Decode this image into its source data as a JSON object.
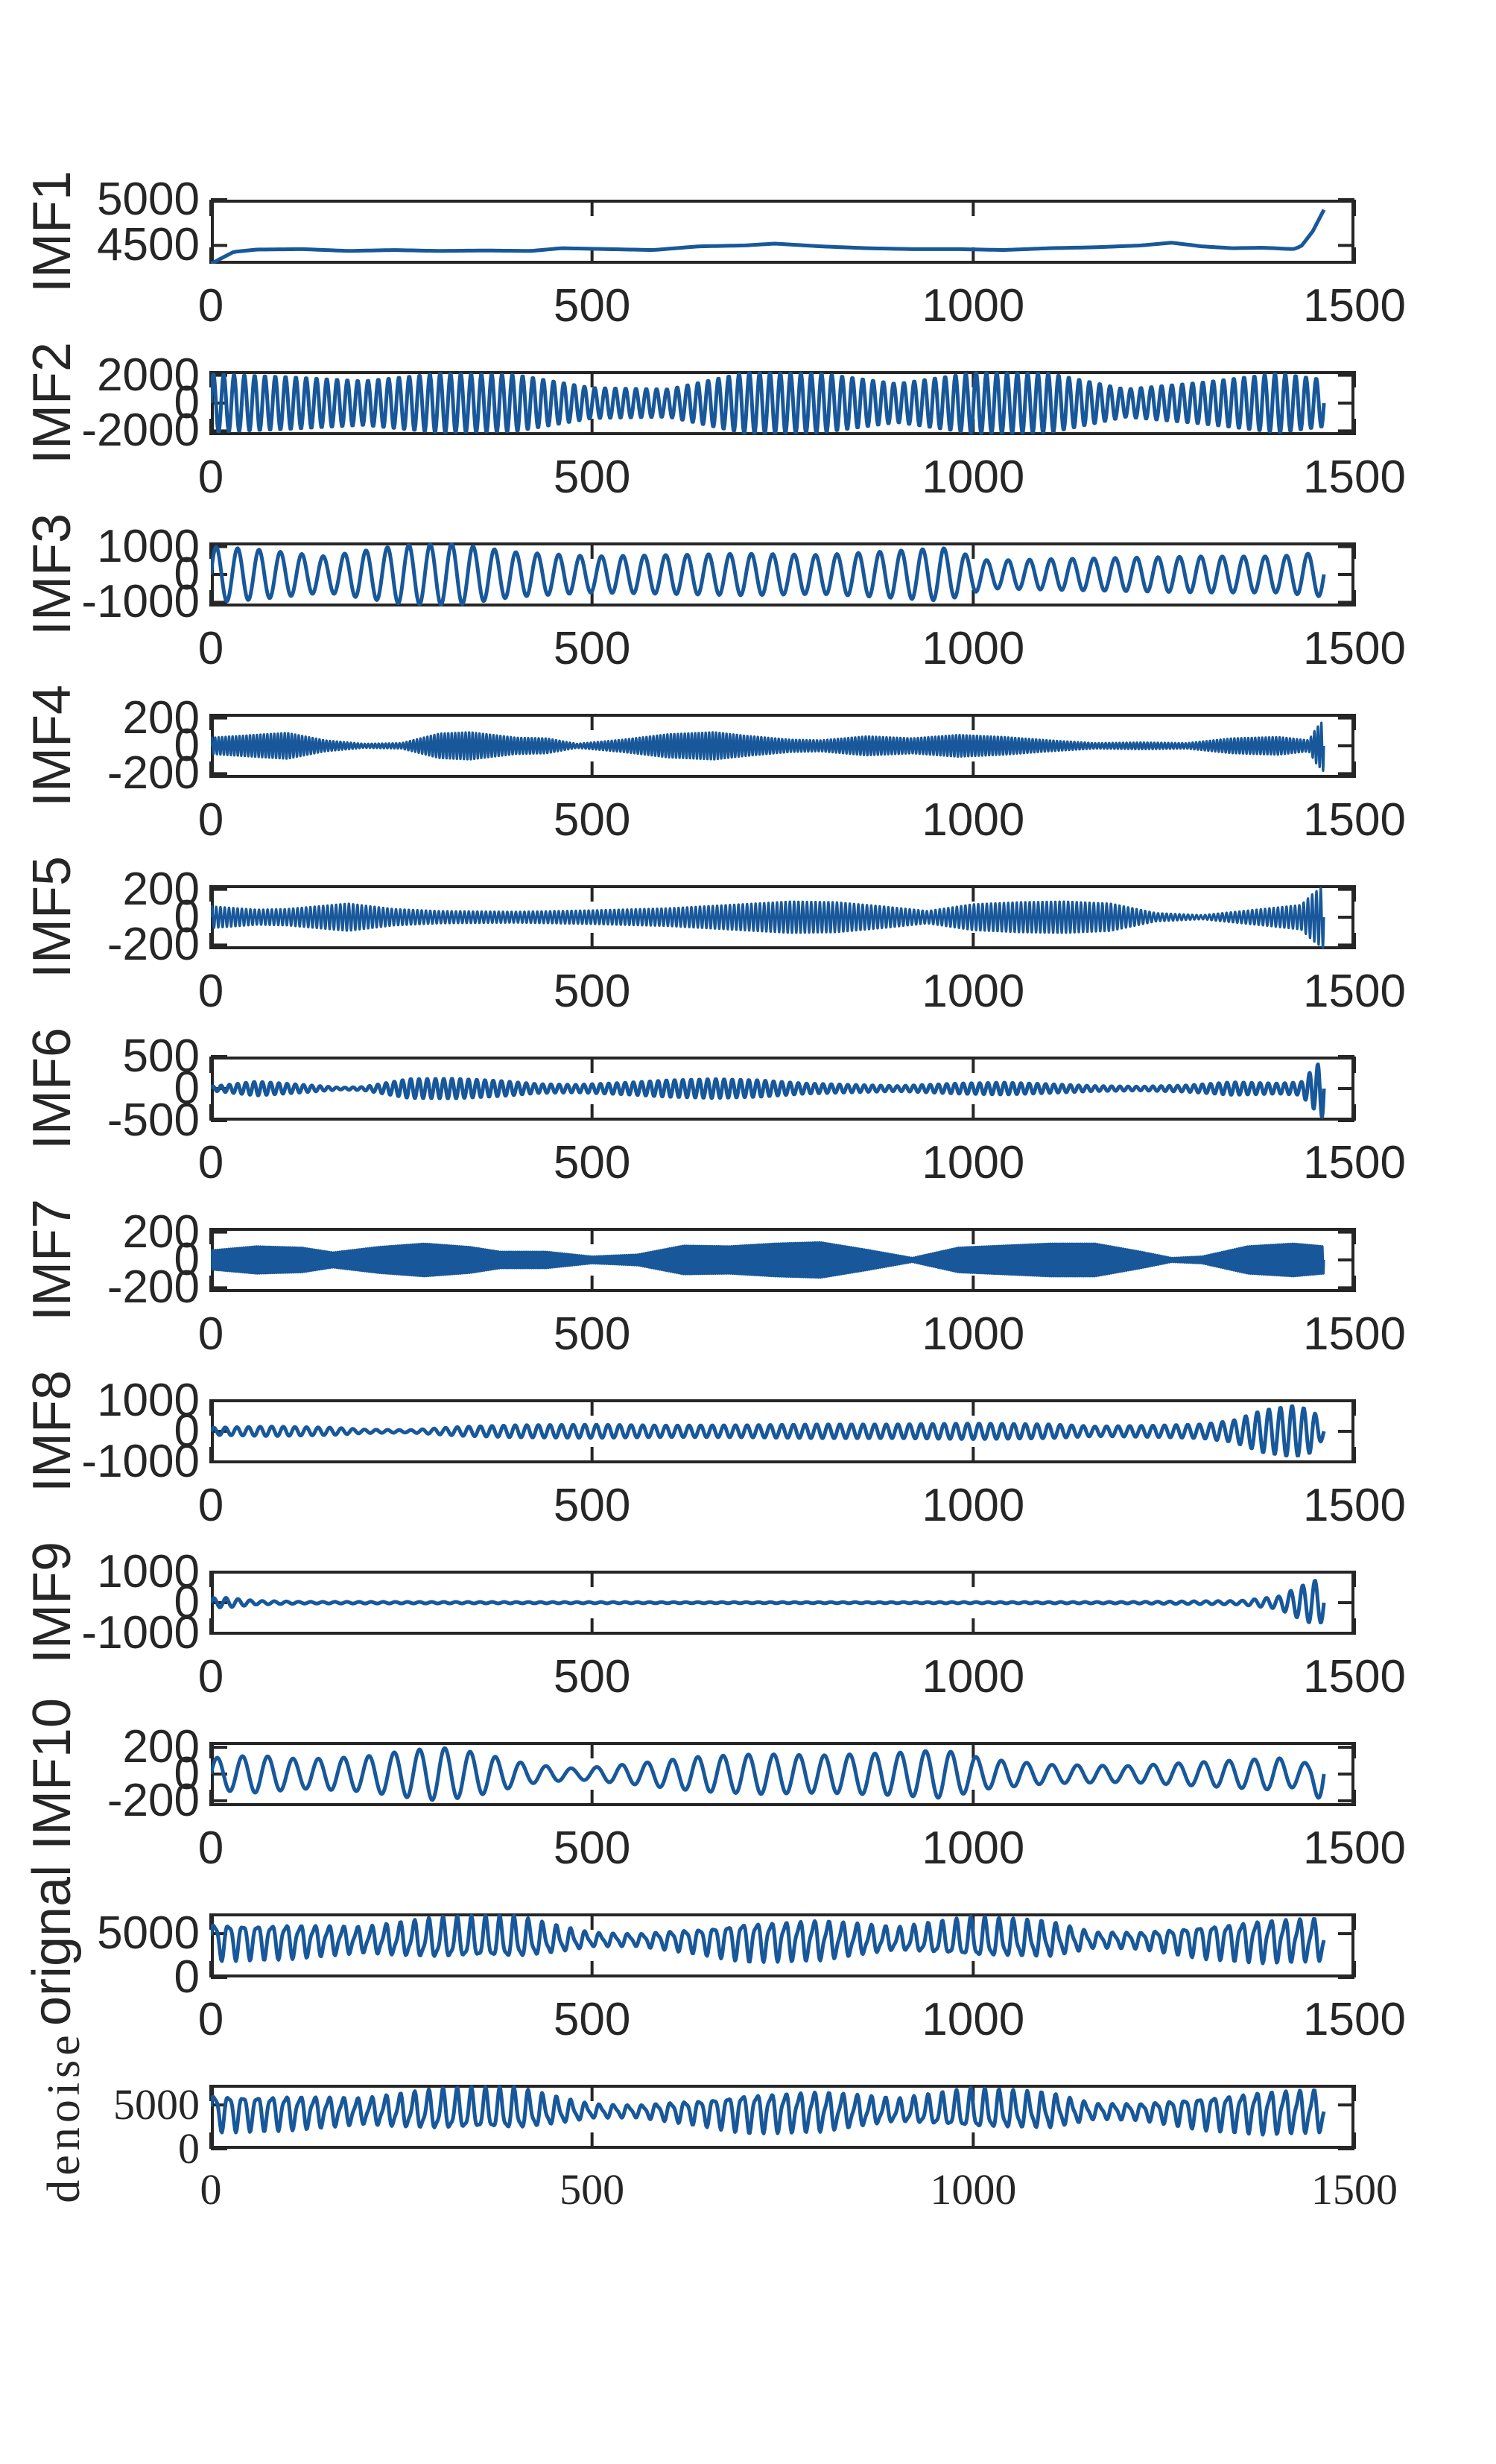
{
  "figure": {
    "background": "#ffffff",
    "axis_color": "#262626",
    "line_color": "#18589a"
  },
  "chart_data": {
    "type": "line",
    "title": "",
    "layout": "12 stacked subplots (EMD/VMD decomposition), shared x-axis 0-1500, grid off, no legend",
    "x_ticks": [
      0,
      500,
      1000,
      1500
    ],
    "x_tick_labels": [
      "0",
      "500",
      "1000",
      "1500"
    ],
    "xlim": [
      0,
      1500
    ],
    "signal_length": 1460,
    "panels": [
      {
        "name": "IMF1",
        "ylabel": "IMF1",
        "font": "sans",
        "ylim": [
          4300,
          5000
        ],
        "y_ticks": [
          4500,
          5000
        ],
        "y_tick_labels": [
          "4500",
          "5000"
        ],
        "kind": "trend",
        "trend_x": [
          0,
          30,
          60,
          120,
          180,
          240,
          300,
          360,
          420,
          460,
          520,
          580,
          640,
          700,
          740,
          800,
          860,
          920,
          980,
          1040,
          1100,
          1160,
          1220,
          1260,
          1300,
          1340,
          1380,
          1420,
          1430,
          1445,
          1460
        ],
        "trend_y": [
          4300,
          4430,
          4455,
          4460,
          4440,
          4450,
          4440,
          4445,
          4440,
          4470,
          4460,
          4450,
          4490,
          4500,
          4520,
          4490,
          4470,
          4460,
          4460,
          4450,
          4470,
          4480,
          4500,
          4530,
          4490,
          4470,
          4475,
          4460,
          4490,
          4650,
          4890
        ]
      },
      {
        "name": "IMF2",
        "ylabel": "IMF2",
        "font": "sans",
        "ylim": [
          -2300,
          2300
        ],
        "y_ticks": [
          -2000,
          0,
          2000
        ],
        "y_tick_labels": [
          "-2000",
          "0",
          "2000"
        ],
        "kind": "oscillation",
        "cycles": 108,
        "offset": 0,
        "env_x": [
          0,
          100,
          200,
          300,
          400,
          500,
          600,
          700,
          800,
          900,
          1000,
          1100,
          1200,
          1300,
          1400,
          1460
        ],
        "env_y": [
          2100,
          1900,
          1600,
          2150,
          2050,
          1100,
          1000,
          2200,
          2150,
          1400,
          2200,
          2150,
          1000,
          1500,
          2150,
          1700
        ]
      },
      {
        "name": "IMF3",
        "ylabel": "IMF3",
        "font": "sans",
        "ylim": [
          -1150,
          1150
        ],
        "y_ticks": [
          -1000,
          0,
          1000
        ],
        "y_tick_labels": [
          "-1000",
          "0",
          "1000"
        ],
        "kind": "oscillation",
        "cycles": 52,
        "offset": 0,
        "env_x": [
          0,
          60,
          150,
          250,
          320,
          400,
          500,
          600,
          700,
          800,
          900,
          960,
          1020,
          1100,
          1200,
          1300,
          1400,
          1460
        ],
        "env_y": [
          1000,
          900,
          650,
          1050,
          1100,
          800,
          650,
          700,
          750,
          700,
          850,
          950,
          500,
          550,
          600,
          650,
          650,
          800
        ]
      },
      {
        "name": "IMF4",
        "ylabel": "IMF4",
        "font": "sans",
        "ylim": [
          -230,
          230
        ],
        "y_ticks": [
          -200,
          0,
          200
        ],
        "y_tick_labels": [
          "-200",
          "0",
          "200"
        ],
        "kind": "oscillation",
        "cycles": 320,
        "offset": 0,
        "env_x": [
          0,
          100,
          150,
          200,
          250,
          300,
          340,
          400,
          440,
          480,
          540,
          600,
          660,
          700,
          760,
          800,
          860,
          920,
          980,
          1040,
          1100,
          1160,
          1220,
          1280,
          1340,
          1400,
          1440,
          1450,
          1460
        ],
        "env_y": [
          60,
          95,
          40,
          15,
          20,
          90,
          100,
          60,
          55,
          15,
          45,
          85,
          100,
          75,
          45,
          40,
          70,
          55,
          80,
          65,
          40,
          20,
          25,
          20,
          55,
          65,
          40,
          130,
          190
        ]
      },
      {
        "name": "IMF5",
        "ylabel": "IMF5",
        "font": "sans",
        "ylim": [
          -230,
          230
        ],
        "y_ticks": [
          -200,
          0,
          200
        ],
        "y_tick_labels": [
          "-200",
          "0",
          "200"
        ],
        "kind": "oscillation",
        "cycles": 260,
        "offset": 0,
        "env_x": [
          0,
          60,
          100,
          180,
          240,
          300,
          400,
          500,
          600,
          680,
          760,
          820,
          880,
          940,
          1000,
          1060,
          1120,
          1180,
          1240,
          1300,
          1380,
          1430,
          1445,
          1460
        ],
        "env_y": [
          80,
          55,
          60,
          100,
          60,
          45,
          40,
          50,
          65,
          90,
          115,
          110,
          80,
          45,
          95,
          110,
          115,
          100,
          30,
          15,
          60,
          90,
          170,
          230
        ]
      },
      {
        "name": "IMF6",
        "ylabel": "IMF6",
        "font": "sans",
        "ylim": [
          -500,
          500
        ],
        "y_ticks": [
          -500,
          0,
          500
        ],
        "y_tick_labels": [
          "-500",
          "0",
          "500"
        ],
        "kind": "oscillation",
        "cycles": 135,
        "offset": 0,
        "env_x": [
          0,
          60,
          120,
          170,
          200,
          260,
          320,
          380,
          430,
          480,
          540,
          600,
          660,
          720,
          780,
          840,
          900,
          980,
          1040,
          1100,
          1160,
          1220,
          1280,
          1340,
          1400,
          1430,
          1445,
          1460
        ],
        "env_y": [
          30,
          110,
          60,
          15,
          25,
          150,
          155,
          120,
          70,
          60,
          90,
          130,
          150,
          130,
          80,
          60,
          40,
          80,
          95,
          70,
          40,
          30,
          50,
          100,
          80,
          100,
          300,
          480
        ]
      },
      {
        "name": "IMF7",
        "ylabel": "IMF7",
        "font": "sans",
        "ylim": [
          -230,
          230
        ],
        "y_ticks": [
          -200,
          0,
          200
        ],
        "y_tick_labels": [
          "-200",
          "0",
          "200"
        ],
        "kind": "oscillation",
        "cycles": 520,
        "offset": 0,
        "env_x": [
          0,
          60,
          120,
          160,
          220,
          280,
          340,
          380,
          440,
          500,
          560,
          620,
          680,
          740,
          800,
          860,
          920,
          980,
          1040,
          1100,
          1160,
          1220,
          1260,
          1300,
          1360,
          1420,
          1460
        ],
        "env_y": [
          70,
          100,
          90,
          55,
          95,
          120,
          95,
          60,
          60,
          25,
          40,
          105,
          100,
          120,
          130,
          75,
          15,
          90,
          105,
          120,
          120,
          60,
          15,
          25,
          100,
          120,
          100
        ]
      },
      {
        "name": "IMF8",
        "ylabel": "IMF8",
        "font": "sans",
        "ylim": [
          -1050,
          1050
        ],
        "y_ticks": [
          -1000,
          0,
          1000
        ],
        "y_tick_labels": [
          "-1000",
          "0",
          "1000"
        ],
        "kind": "oscillation",
        "cycles": 96,
        "offset": 0,
        "env_x": [
          0,
          80,
          160,
          200,
          260,
          330,
          400,
          500,
          600,
          700,
          800,
          900,
          1000,
          1100,
          1160,
          1240,
          1300,
          1340,
          1380,
          1420,
          1445,
          1460
        ],
        "env_y": [
          120,
          160,
          120,
          60,
          40,
          150,
          200,
          220,
          190,
          200,
          230,
          230,
          260,
          230,
          160,
          190,
          230,
          350,
          700,
          850,
          700,
          200
        ]
      },
      {
        "name": "IMF9",
        "ylabel": "IMF9",
        "font": "sans",
        "ylim": [
          -1050,
          1050
        ],
        "y_ticks": [
          -1000,
          0,
          1000
        ],
        "y_tick_labels": [
          "-1000",
          "0",
          "1000"
        ],
        "kind": "oscillation",
        "cycles": 92,
        "offset": 0,
        "env_x": [
          0,
          20,
          60,
          120,
          300,
          600,
          900,
          1200,
          1350,
          1400,
          1430,
          1450,
          1460
        ],
        "env_y": [
          150,
          160,
          60,
          30,
          25,
          20,
          20,
          25,
          60,
          200,
          550,
          750,
          600
        ]
      },
      {
        "name": "IMF10",
        "ylabel": "IMF10",
        "font": "sans",
        "ylim": [
          -240,
          240
        ],
        "y_ticks": [
          -200,
          0,
          200
        ],
        "y_tick_labels": [
          "-200",
          "0",
          "200"
        ],
        "kind": "oscillation",
        "cycles": 44,
        "offset": 0,
        "env_x": [
          0,
          60,
          120,
          200,
          250,
          300,
          350,
          420,
          480,
          560,
          640,
          720,
          800,
          900,
          960,
          1020,
          1100,
          1200,
          1300,
          1400,
          1440,
          1460
        ],
        "env_y": [
          120,
          140,
          110,
          130,
          170,
          200,
          160,
          70,
          40,
          80,
          130,
          150,
          140,
          160,
          180,
          110,
          70,
          60,
          90,
          120,
          80,
          240
        ]
      },
      {
        "name": "orignal",
        "ylabel": "orignal",
        "font": "sans",
        "ylim": [
          0,
          7300
        ],
        "y_ticks": [
          0,
          5000
        ],
        "y_tick_labels": [
          "0",
          "5000"
        ],
        "kind": "composite",
        "cycles": 78,
        "offset": 4300,
        "env_x": [
          0,
          100,
          200,
          300,
          400,
          500,
          560,
          640,
          700,
          800,
          900,
          1000,
          1100,
          1160,
          1220,
          1300,
          1380,
          1460
        ],
        "env_y": [
          2500,
          2300,
          1700,
          2700,
          2800,
          900,
          800,
          1700,
          2600,
          2600,
          1500,
          2700,
          2300,
          1000,
          1100,
          2200,
          2800,
          2800
        ]
      },
      {
        "name": "denoise",
        "ylabel": "denoise",
        "font": "serif",
        "ylim": [
          0,
          7300
        ],
        "y_ticks": [
          0,
          5000
        ],
        "y_tick_labels": [
          "0",
          "5000"
        ],
        "kind": "composite",
        "cycles": 78,
        "offset": 4300,
        "env_x": [
          0,
          100,
          200,
          300,
          400,
          500,
          560,
          640,
          700,
          800,
          900,
          1000,
          1100,
          1160,
          1220,
          1300,
          1380,
          1460
        ],
        "env_y": [
          2500,
          2300,
          1700,
          2700,
          2800,
          900,
          800,
          1700,
          2600,
          2600,
          1500,
          2700,
          2300,
          1000,
          1100,
          2200,
          2800,
          2800
        ]
      }
    ]
  }
}
